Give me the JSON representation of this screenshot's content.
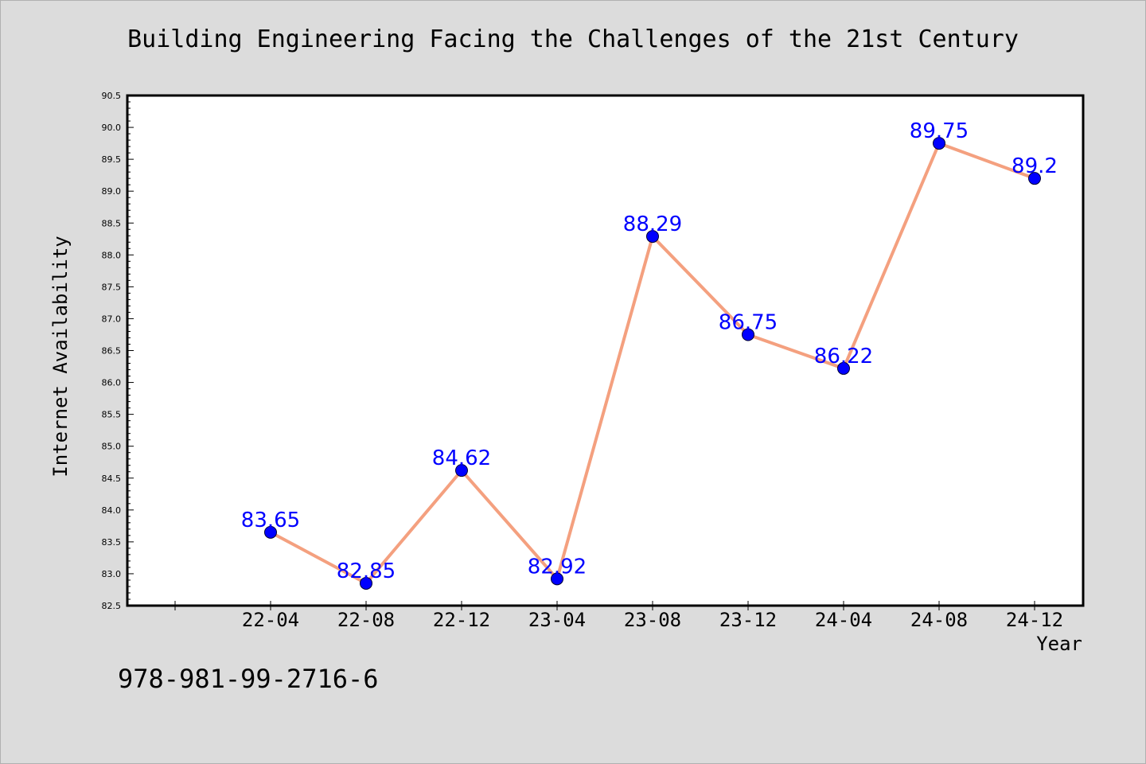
{
  "chart_data": {
    "type": "line",
    "title": "Building Engineering Facing the Challenges of the 21st Century",
    "xlabel": "Year",
    "ylabel": "Internet Availability",
    "categories": [
      "22-04",
      "22-08",
      "22-12",
      "23-04",
      "23-08",
      "23-12",
      "24-04",
      "24-08",
      "24-12"
    ],
    "series": [
      {
        "values": [
          83.65,
          82.85,
          84.62,
          82.92,
          88.29,
          86.75,
          86.22,
          89.75,
          89.2
        ],
        "labels": [
          "83.65",
          "82.85",
          "84.62",
          "82.92",
          "88.29",
          "86.75",
          "86.22",
          "89.75",
          "89.2"
        ]
      }
    ],
    "ylim": [
      82.5,
      90.5
    ],
    "yticks": [
      "82.5",
      "83.0",
      "83.5",
      "84.0",
      "84.5",
      "85.0",
      "85.5",
      "86.0",
      "86.5",
      "87.0",
      "87.5",
      "88.0",
      "88.5",
      "89.0",
      "89.5",
      "90.0",
      "90.5"
    ],
    "grid": false,
    "legend": "none",
    "colors": {
      "line": "#f4a07f",
      "marker": "#0000ff",
      "label": "#0000ff",
      "background": "#dcdcdc",
      "plot_background": "#ffffff"
    }
  },
  "footer": {
    "code": "978-981-99-2716-6"
  }
}
